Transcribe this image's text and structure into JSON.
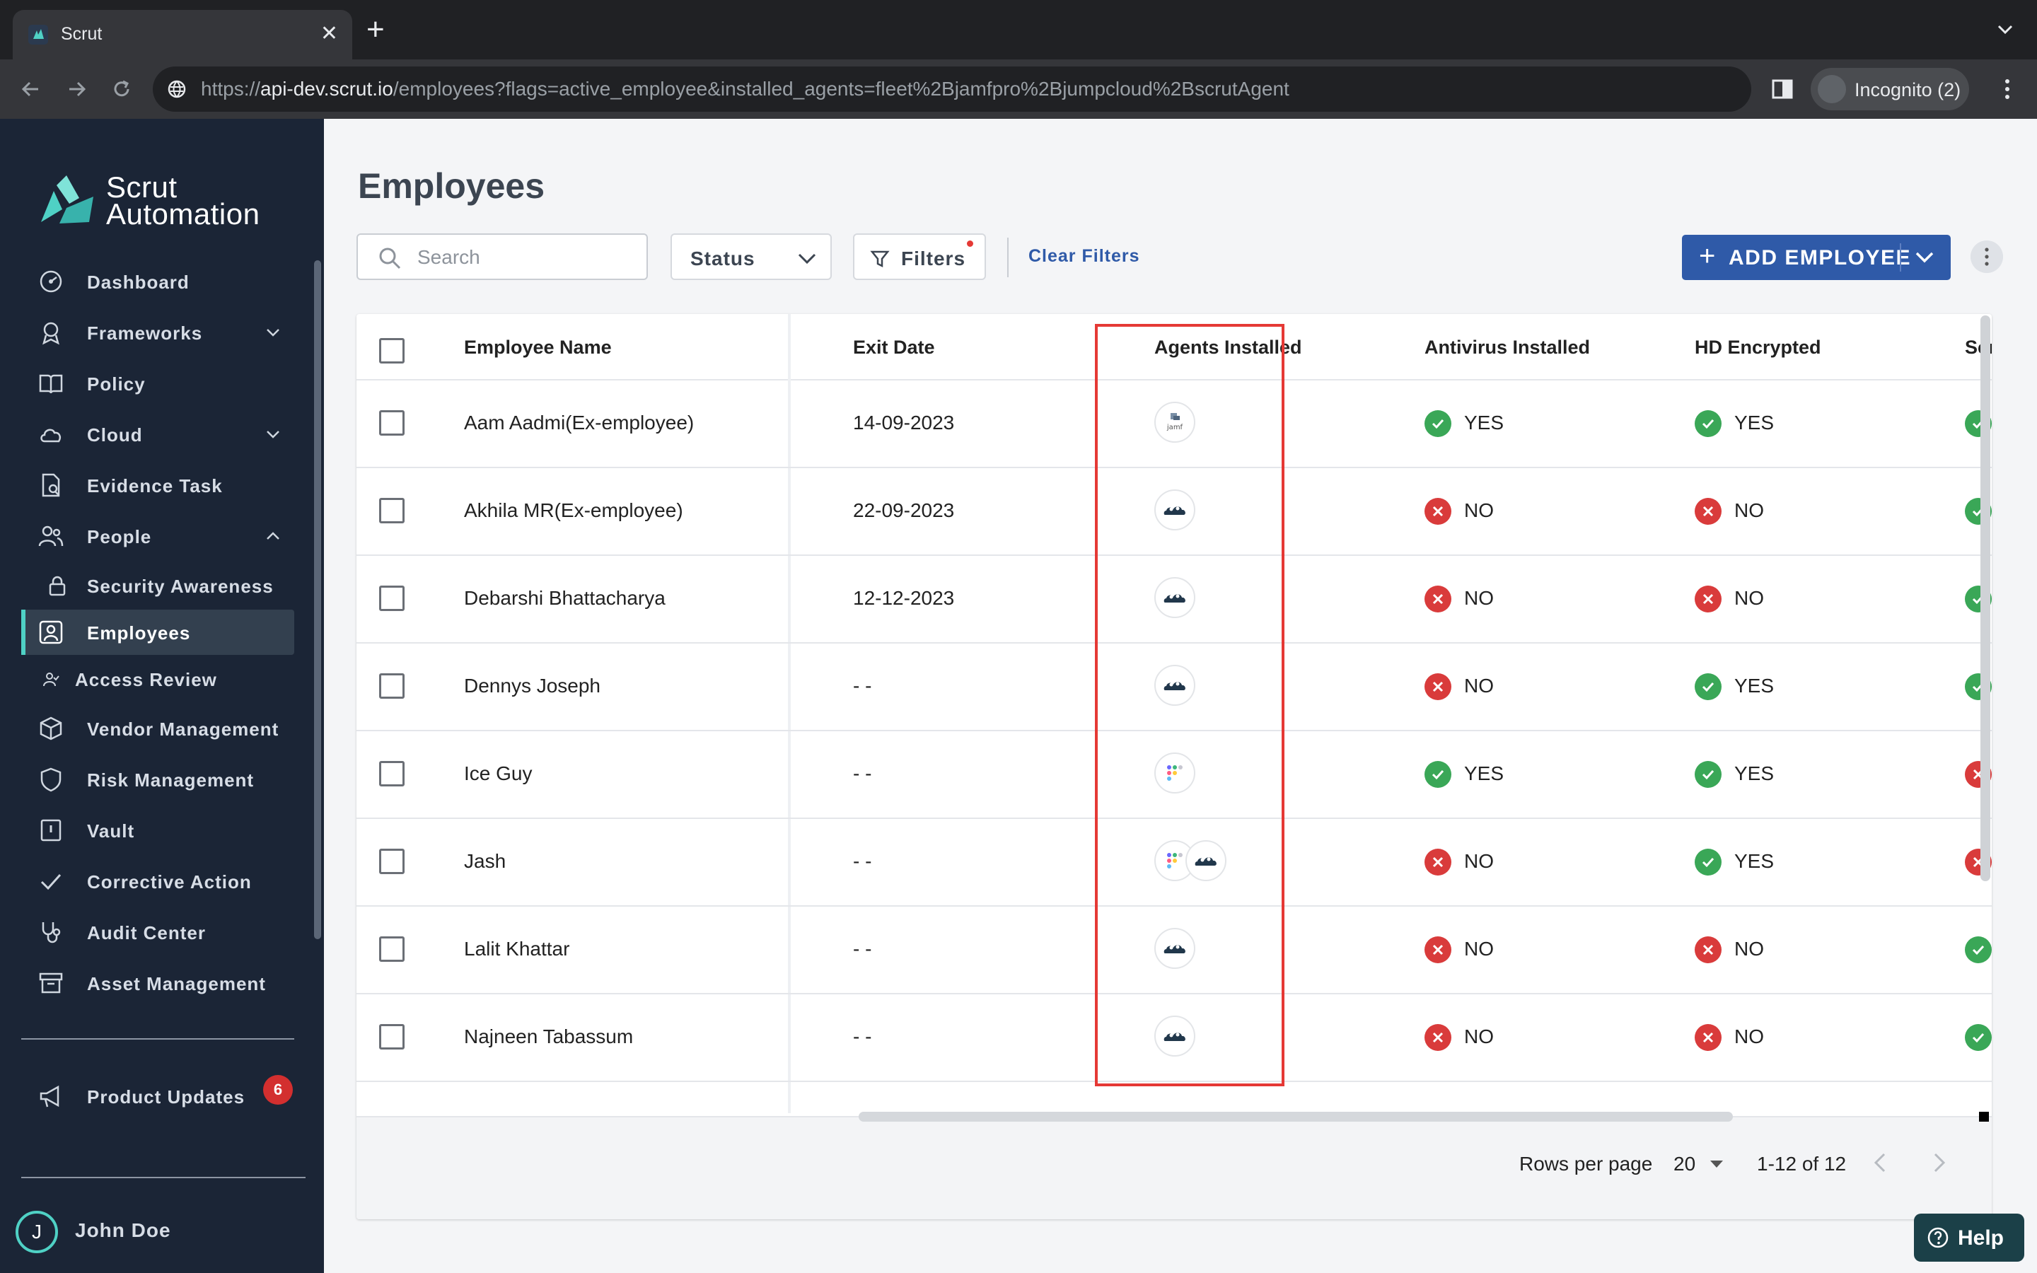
{
  "browser": {
    "tab_title": "Scrut",
    "url_prefix": "https://",
    "url_host": "api-dev.scrut.io",
    "url_path": "/employees?flags=active_employee&installed_agents=fleet%2Bjamfpro%2Bjumpcloud%2BscrutAgent",
    "profile_label": "Incognito (2)"
  },
  "sidebar": {
    "brand_line1": "Scrut",
    "brand_line2": "Automation",
    "items": [
      {
        "label": "Dashboard",
        "icon": "dashboard-icon"
      },
      {
        "label": "Frameworks",
        "icon": "frameworks-icon"
      },
      {
        "label": "Policy",
        "icon": "book-icon"
      },
      {
        "label": "Cloud",
        "icon": "cloud-icon"
      },
      {
        "label": "Evidence Task",
        "icon": "evidence-icon"
      },
      {
        "label": "People",
        "icon": "people-icon"
      },
      {
        "label": "Security Awareness",
        "icon": "lock-icon"
      },
      {
        "label": "Employees",
        "icon": "employee-icon"
      },
      {
        "label": "Access Review",
        "icon": "access-icon"
      },
      {
        "label": "Vendor Management",
        "icon": "cube-icon"
      },
      {
        "label": "Risk Management",
        "icon": "shield-icon"
      },
      {
        "label": "Vault",
        "icon": "vault-icon"
      },
      {
        "label": "Corrective Action",
        "icon": "check-icon"
      },
      {
        "label": "Audit Center",
        "icon": "stethoscope-icon"
      },
      {
        "label": "Asset Management",
        "icon": "archive-icon"
      }
    ],
    "product_updates": "Product Updates",
    "updates_count": "6",
    "user_initial": "J",
    "user_name": "John Doe"
  },
  "page": {
    "title": "Employees",
    "search_placeholder": "Search",
    "status_label": "Status",
    "filters_label": "Filters",
    "clear_filters": "Clear Filters",
    "add_employee": "ADD EMPLOYEE"
  },
  "table": {
    "columns": [
      "Employee Name",
      "Exit Date",
      "Agents Installed",
      "Antivirus Installed",
      "HD Encrypted",
      "Screen"
    ],
    "rows": [
      {
        "name": "Aam Aadmi(Ex-employee)",
        "exit": "14-09-2023",
        "agents": [
          "jamf"
        ],
        "antivirus": "YES",
        "hd": "YES",
        "screen": "YES"
      },
      {
        "name": "Akhila MR(Ex-employee)",
        "exit": "22-09-2023",
        "agents": [
          "jumpcloud"
        ],
        "antivirus": "NO",
        "hd": "NO",
        "screen": "YES"
      },
      {
        "name": "Debarshi Bhattacharya",
        "exit": "12-12-2023",
        "agents": [
          "jumpcloud"
        ],
        "antivirus": "NO",
        "hd": "NO",
        "screen": "YES"
      },
      {
        "name": "Dennys Joseph",
        "exit": "- -",
        "agents": [
          "jumpcloud"
        ],
        "antivirus": "NO",
        "hd": "YES",
        "screen": "YES"
      },
      {
        "name": "Ice Guy",
        "exit": "- -",
        "agents": [
          "fleet"
        ],
        "antivirus": "YES",
        "hd": "YES",
        "screen": "NO"
      },
      {
        "name": "Jash",
        "exit": "- -",
        "agents": [
          "fleet",
          "jumpcloud"
        ],
        "antivirus": "NO",
        "hd": "YES",
        "screen": "NO"
      },
      {
        "name": "Lalit Khattar",
        "exit": "- -",
        "agents": [
          "jumpcloud"
        ],
        "antivirus": "NO",
        "hd": "NO",
        "screen": "YES"
      },
      {
        "name": "Najneen Tabassum",
        "exit": "- -",
        "agents": [
          "jumpcloud"
        ],
        "antivirus": "NO",
        "hd": "NO",
        "screen": "YES"
      }
    ],
    "rows_per_page_label": "Rows per page",
    "rows_per_page_value": "20",
    "page_info": "1-12 of 12"
  },
  "help_label": "Help",
  "colors": {
    "sidebar_bg": "#1b2536",
    "accent": "#2f5aa8",
    "yes": "#3aa757",
    "no": "#d93b3b",
    "highlight": "#e53935"
  }
}
